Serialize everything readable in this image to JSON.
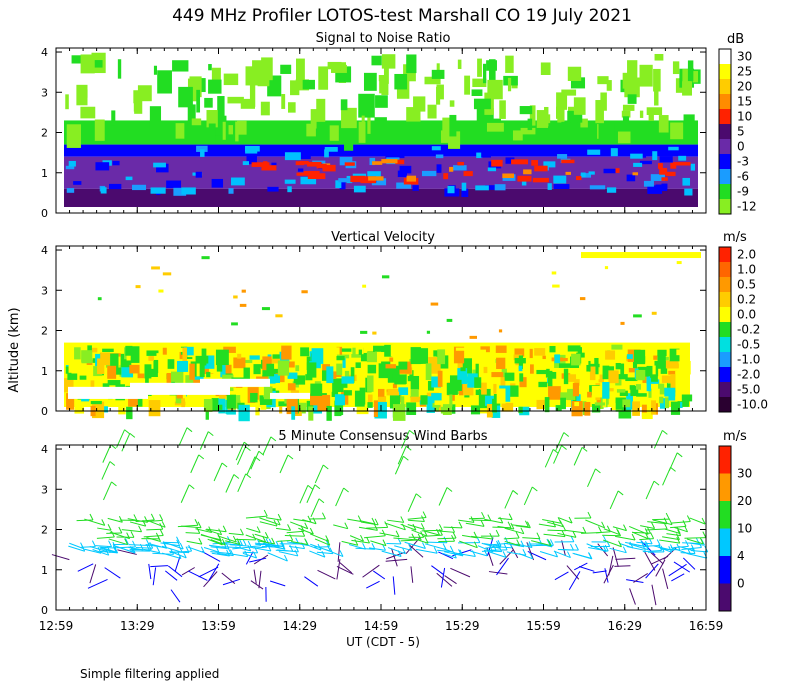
{
  "title": "449 MHz Profiler LOTOS-test Marshall CO 19 July 2021",
  "ylabel": "Altitude (km)",
  "xlabel": "UT  (CDT - 5)",
  "footer_note": "Simple filtering applied",
  "x_ticks": [
    "12:59",
    "13:29",
    "13:59",
    "14:29",
    "14:59",
    "15:29",
    "15:59",
    "16:29",
    "16:59"
  ],
  "colors": {
    "white": "#ffffff",
    "yellow": "#ffff00",
    "gold": "#ffcc00",
    "orange": "#ff8c00",
    "red": "#ff2200",
    "darkpurple": "#4b0a6e",
    "purple": "#6a2aa8",
    "blue": "#0000ff",
    "skyblue": "#1a9cff",
    "cyan": "#00e0e0",
    "green": "#22dd22",
    "lime": "#88ee22"
  },
  "chart_data": [
    {
      "type": "heatmap",
      "title": "Signal to Noise Ratio",
      "xlabel": "UT  (CDT - 5)",
      "ylabel": "Altitude (km)",
      "xlim": [
        "12:59",
        "16:59"
      ],
      "ylim": [
        0,
        4
      ],
      "y_ticks": [
        "0",
        "1",
        "2",
        "3",
        "4"
      ],
      "colorbar_unit": "dB",
      "colorbar_levels": [
        "30",
        "25",
        "20",
        "15",
        "10",
        "5",
        "0",
        "-3",
        "-6",
        "-9",
        "-12"
      ],
      "colorbar_colors": [
        "#ffffff",
        "#ffff00",
        "#ffcc00",
        "#ff8c00",
        "#ff2200",
        "#4b0a6e",
        "#6a2aa8",
        "#0000ff",
        "#1a9cff",
        "#22dd22",
        "#88ee22"
      ],
      "layers": [
        {
          "alt_km": [
            0.15,
            0.6
          ],
          "snr_db": 5
        },
        {
          "alt_km": [
            0.6,
            1.4
          ],
          "snr_db": 0
        },
        {
          "alt_km": [
            1.4,
            1.7
          ],
          "snr_db": -3
        },
        {
          "alt_km": [
            1.7,
            2.3
          ],
          "snr_db": -9
        },
        {
          "alt_km": [
            2.3,
            4.1
          ],
          "snr_db": 30
        }
      ]
    },
    {
      "type": "heatmap",
      "title": "Vertical Velocity",
      "xlabel": "UT  (CDT - 5)",
      "ylabel": "Altitude (km)",
      "xlim": [
        "12:59",
        "16:59"
      ],
      "ylim": [
        0,
        4
      ],
      "y_ticks": [
        "0",
        "1",
        "2",
        "3",
        "4"
      ],
      "colorbar_unit": "m/s",
      "colorbar_levels": [
        "2.0",
        "1.0",
        "0.5",
        "0.2",
        "0.0",
        "-0.2",
        "-0.5",
        "-1.0",
        "-2.0",
        "-5.0",
        "-10.0"
      ],
      "colorbar_colors": [
        "#ff2200",
        "#ff6600",
        "#ff9900",
        "#ffcc00",
        "#ffff00",
        "#22dd22",
        "#00e0e0",
        "#1a9cff",
        "#0000ff",
        "#4b0a6e",
        "#2a0030"
      ],
      "data_extent_km": [
        0.0,
        1.7
      ]
    },
    {
      "type": "scatter",
      "title": "5 Minute Consensus Wind Barbs",
      "xlabel": "UT  (CDT - 5)",
      "ylabel": "Altitude (km)",
      "xlim": [
        "12:59",
        "16:59"
      ],
      "ylim": [
        0,
        4
      ],
      "y_ticks": [
        "0",
        "1",
        "2",
        "3",
        "4"
      ],
      "colorbar_unit": "m/s",
      "colorbar_levels": [
        "30",
        "20",
        "10",
        "4",
        "0"
      ],
      "colorbar_colors": [
        "#ff2200",
        "#ff9900",
        "#22dd22",
        "#00c8ff",
        "#0000ff",
        "#4b0a6e"
      ],
      "barb_layers": [
        {
          "alt_km": [
            0.5,
            1.4
          ],
          "speed_ms": 2
        },
        {
          "alt_km": [
            1.4,
            1.7
          ],
          "speed_ms": 6
        },
        {
          "alt_km": [
            1.7,
            2.3
          ],
          "speed_ms": 12
        }
      ]
    }
  ]
}
